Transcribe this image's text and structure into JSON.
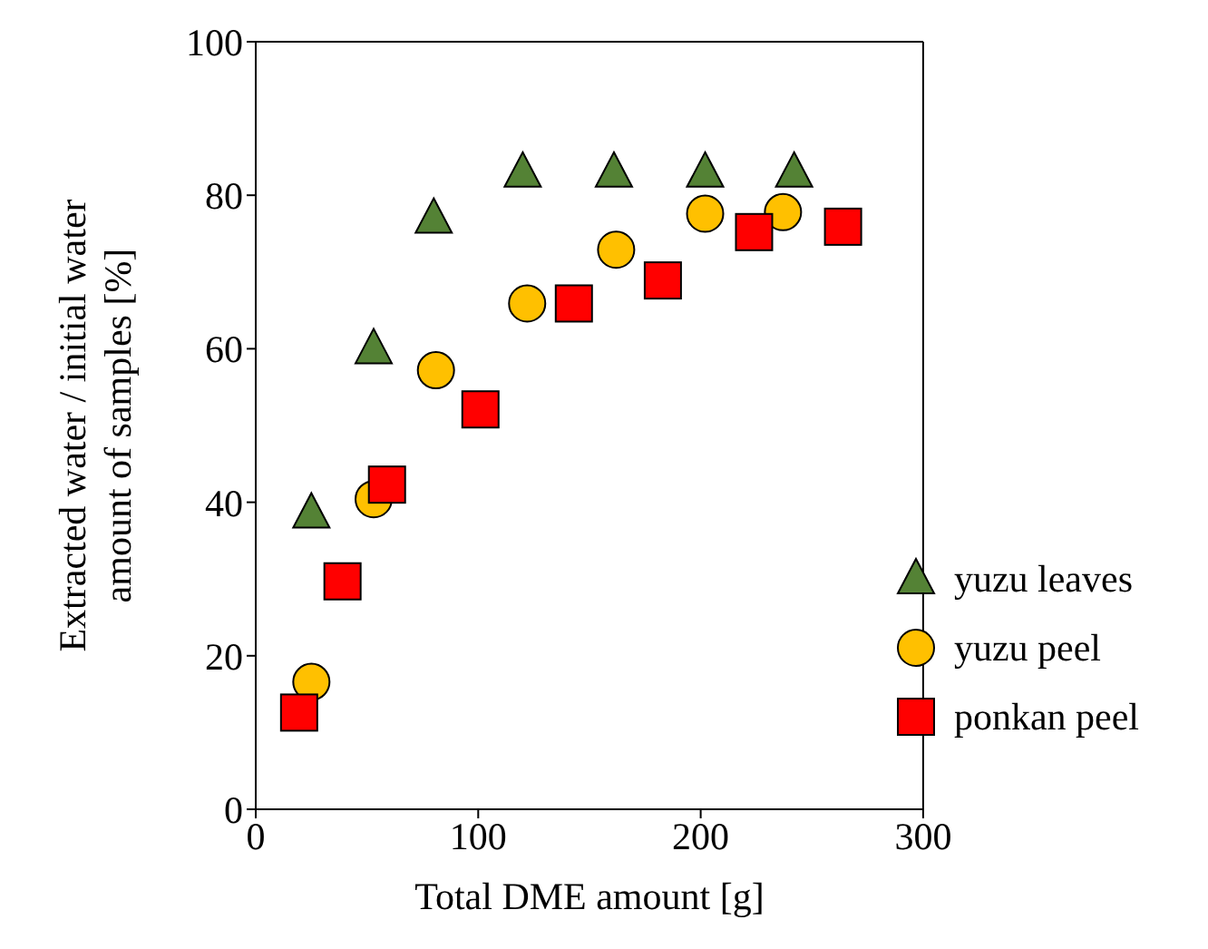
{
  "chart_data": {
    "type": "scatter",
    "xlabel": "Total DME amount [g]",
    "ylabel": "Extracted water / initial water amount of samples [%]",
    "xlim": [
      0,
      300
    ],
    "xticks": [
      0,
      100,
      200,
      300
    ],
    "ylim": [
      0,
      100
    ],
    "yticks": [
      0,
      20,
      40,
      60,
      80,
      100
    ],
    "grid": false,
    "legend": "bottom right",
    "series": [
      {
        "name": "yuzu leaves",
        "color": "#548235",
        "marker": "triangle",
        "x": [
          25,
          53,
          80,
          120,
          161,
          202,
          242
        ],
        "values": [
          38.6,
          60,
          77,
          83,
          83,
          83,
          83
        ]
      },
      {
        "name": "yuzu peel",
        "color": "#ffc000",
        "marker": "circle",
        "x": [
          25,
          53,
          81,
          122,
          162,
          202,
          237
        ],
        "values": [
          16.6,
          40.4,
          57.2,
          65.9,
          72.9,
          77.6,
          77.8
        ]
      },
      {
        "name": "ponkan peel",
        "color": "#ff0000",
        "marker": "square",
        "x": [
          19.5,
          39,
          59,
          101,
          143,
          183,
          224,
          264
        ],
        "values": [
          12.6,
          29.7,
          42.3,
          52.1,
          65.9,
          68.9,
          75.2,
          75.9
        ]
      }
    ]
  }
}
